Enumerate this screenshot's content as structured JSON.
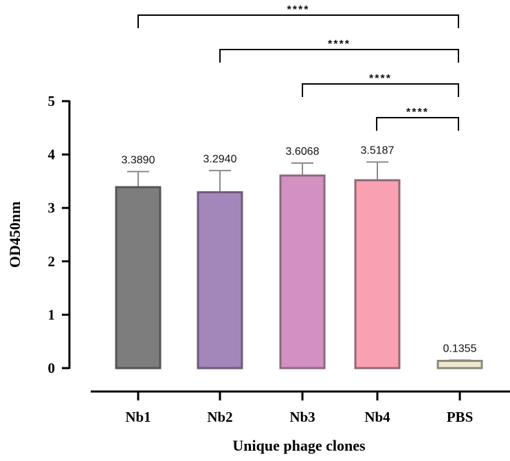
{
  "chart_data": {
    "type": "bar",
    "title": "",
    "xlabel": "Unique phage clones",
    "ylabel": "OD450nm",
    "ylim": [
      0,
      5
    ],
    "yticks": [
      0,
      1,
      2,
      3,
      4,
      5
    ],
    "grid": false,
    "legend": null,
    "categories": [
      "Nb1",
      "Nb2",
      "Nb3",
      "Nb4",
      "PBS"
    ],
    "values": [
      3.389,
      3.294,
      3.6068,
      3.5187,
      0.1355
    ],
    "value_labels": [
      "3.3890",
      "3.2940",
      "3.6068",
      "3.5187",
      "0.1355"
    ],
    "error_upper": [
      3.68,
      3.7,
      3.84,
      3.86,
      0.15
    ],
    "colors": [
      "#7d7d7d",
      "#a487ba",
      "#d291c1",
      "#f9a0b3",
      "#efe8d0"
    ],
    "edge_colors": [
      "#555555",
      "#6d5a7a",
      "#8a6a82",
      "#8f6a72",
      "#8a8a7a"
    ],
    "annotations": [
      {
        "from": "Nb1",
        "to": "PBS",
        "label": "****"
      },
      {
        "from": "Nb2",
        "to": "PBS",
        "label": "****"
      },
      {
        "from": "Nb3",
        "to": "PBS",
        "label": "****"
      },
      {
        "from": "Nb4",
        "to": "PBS",
        "label": "****"
      }
    ]
  }
}
